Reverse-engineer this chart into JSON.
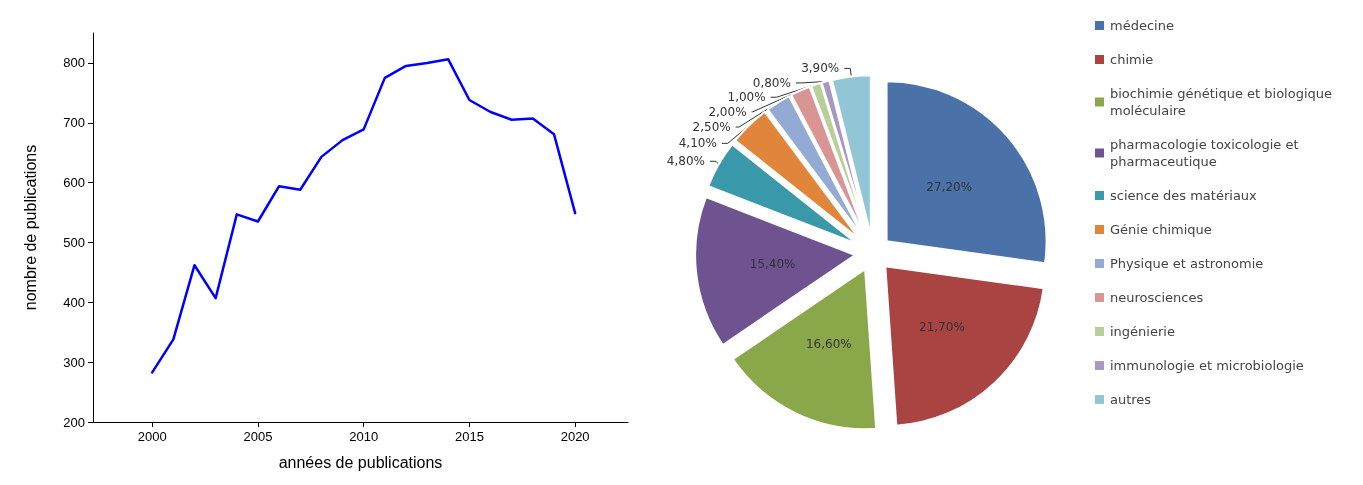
{
  "chart_data": [
    {
      "type": "line",
      "xlabel": "années de publications",
      "ylabel": "nombre de publications",
      "x": [
        2000,
        2001,
        2002,
        2003,
        2004,
        2005,
        2006,
        2007,
        2008,
        2009,
        2010,
        2011,
        2012,
        2013,
        2014,
        2015,
        2016,
        2017,
        2018,
        2019,
        2020
      ],
      "series": [
        {
          "color": "#0000ff",
          "values": [
            283,
            338,
            462,
            407,
            547,
            535,
            594,
            588,
            643,
            671,
            689,
            775,
            795,
            800,
            806,
            738,
            718,
            705,
            707,
            681,
            549
          ]
        }
      ],
      "xlim": [
        1997.2,
        2022.5
      ],
      "xticks": [
        2000,
        2005,
        2010,
        2015,
        2020
      ],
      "ylim": [
        200,
        850
      ],
      "yticks": [
        200,
        300,
        400,
        500,
        600,
        700,
        800
      ],
      "grid": false,
      "legend": false,
      "marker": "none",
      "line_style": "solid"
    },
    {
      "type": "pie",
      "categories": [
        "médecine",
        "chimie",
        "biochimie génétique et biologique moléculaire",
        "pharmacologie toxicologie et pharmaceutique",
        "science des matériaux",
        "Génie chimique",
        "Physique et astronomie",
        "neurosciences",
        "ingénierie",
        "immunologie et microbiologie",
        "autres"
      ],
      "values": [
        27.2,
        21.7,
        16.6,
        15.4,
        4.8,
        4.1,
        2.5,
        2.0,
        1.0,
        0.8,
        3.9
      ],
      "value_labels": [
        "27,20%",
        "21,70%",
        "16,60%",
        "15,40%",
        "4,80%",
        "4,10%",
        "2,50%",
        "2,00%",
        "1,00%",
        "0,80%",
        "3,90%"
      ],
      "colors": [
        "#4a72a8",
        "#a94442",
        "#8aa84a",
        "#6f5290",
        "#3a98ab",
        "#e0853a",
        "#93aad4",
        "#d99593",
        "#b9cf9a",
        "#a897c2",
        "#92c6d6"
      ],
      "legend": "right"
    }
  ]
}
